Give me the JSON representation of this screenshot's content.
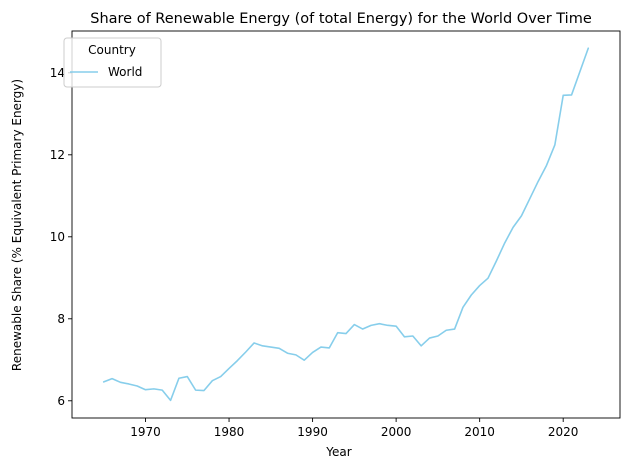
{
  "chart_data": {
    "type": "line",
    "title": "Share of Renewable Energy (of total Energy) for the World Over Time",
    "xlabel": "Year",
    "ylabel": "Renewable Share (% Equivalent Primary Energy)",
    "xlim": [
      1961.2,
      2026.8
    ],
    "ylim": [
      5.58,
      15.02
    ],
    "xticks": [
      1970,
      1980,
      1990,
      2000,
      2010,
      2020
    ],
    "yticks": [
      6,
      8,
      10,
      12,
      14
    ],
    "grid": false,
    "legend": {
      "title": "Country",
      "placement": "top-left"
    },
    "series": [
      {
        "name": "World",
        "color": "#87ceeb",
        "x": [
          1965,
          1966,
          1967,
          1968,
          1969,
          1970,
          1971,
          1972,
          1973,
          1974,
          1975,
          1976,
          1977,
          1978,
          1979,
          1980,
          1981,
          1982,
          1983,
          1984,
          1985,
          1986,
          1987,
          1988,
          1989,
          1990,
          1991,
          1992,
          1993,
          1994,
          1995,
          1996,
          1997,
          1998,
          1999,
          2000,
          2001,
          2002,
          2003,
          2004,
          2005,
          2006,
          2007,
          2008,
          2009,
          2010,
          2011,
          2012,
          2013,
          2014,
          2015,
          2016,
          2017,
          2018,
          2019,
          2020,
          2021,
          2022,
          2023
        ],
        "values": [
          6.46,
          6.54,
          6.45,
          6.41,
          6.36,
          6.27,
          6.29,
          6.26,
          6.01,
          6.55,
          6.59,
          6.26,
          6.25,
          6.49,
          6.59,
          6.79,
          6.98,
          7.19,
          7.41,
          7.34,
          7.31,
          7.28,
          7.16,
          7.12,
          6.99,
          7.18,
          7.31,
          7.29,
          7.66,
          7.64,
          7.86,
          7.75,
          7.84,
          7.88,
          7.84,
          7.82,
          7.56,
          7.58,
          7.34,
          7.53,
          7.58,
          7.72,
          7.75,
          8.28,
          8.58,
          8.81,
          8.99,
          9.41,
          9.85,
          10.23,
          10.51,
          10.93,
          11.35,
          11.74,
          12.24,
          13.45,
          13.46,
          14.03,
          14.6
        ]
      }
    ]
  }
}
